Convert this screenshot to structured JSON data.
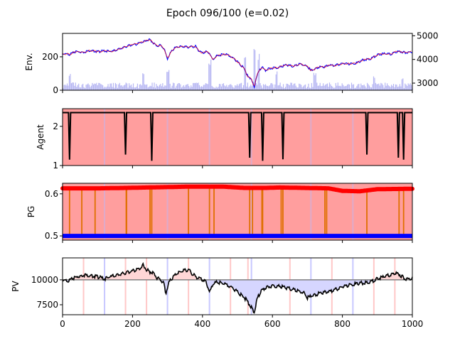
{
  "title": "Epoch 096/100 (e=0.02)",
  "colors": {
    "price_up": "#ff0000",
    "price_down": "#0000ff",
    "volume": "#6f6fe8",
    "agent_line": "#000000",
    "sell_fill": "#ff9e9e",
    "pg_high": "#ff0000",
    "pg_low": "#0000ff",
    "pg_switch": "#e07000",
    "pv_line": "#000000",
    "pv_base": "#808080",
    "pv_above": "#ffd6d6",
    "pv_below": "#d6d6ff",
    "marker_red": "#ffb0b0",
    "marker_blue": "#b0b0ff"
  },
  "chart_data": [
    {
      "type": "line",
      "ylabel": "Env.",
      "ylabel_right": "",
      "xlim": [
        0,
        1000
      ],
      "ylim": [
        0,
        340
      ],
      "yticks": [
        0,
        200
      ],
      "ylim_right": [
        2700,
        5100
      ],
      "yticks_right": [
        3000,
        4000,
        5000
      ],
      "price_points": [
        [
          0,
          218
        ],
        [
          20,
          215
        ],
        [
          40,
          232
        ],
        [
          60,
          228
        ],
        [
          80,
          238
        ],
        [
          100,
          230
        ],
        [
          120,
          236
        ],
        [
          140,
          232
        ],
        [
          150,
          238
        ],
        [
          170,
          252
        ],
        [
          190,
          268
        ],
        [
          210,
          275
        ],
        [
          230,
          290
        ],
        [
          240,
          298
        ],
        [
          250,
          302
        ],
        [
          260,
          282
        ],
        [
          270,
          265
        ],
        [
          280,
          270
        ],
        [
          290,
          248
        ],
        [
          300,
          188
        ],
        [
          310,
          228
        ],
        [
          320,
          252
        ],
        [
          340,
          262
        ],
        [
          360,
          258
        ],
        [
          380,
          262
        ],
        [
          390,
          235
        ],
        [
          400,
          222
        ],
        [
          410,
          230
        ],
        [
          420,
          222
        ],
        [
          430,
          180
        ],
        [
          440,
          205
        ],
        [
          450,
          210
        ],
        [
          460,
          215
        ],
        [
          470,
          212
        ],
        [
          480,
          202
        ],
        [
          490,
          188
        ],
        [
          500,
          170
        ],
        [
          510,
          150
        ],
        [
          520,
          128
        ],
        [
          530,
          80
        ],
        [
          540,
          70
        ],
        [
          548,
          12
        ],
        [
          555,
          90
        ],
        [
          570,
          140
        ],
        [
          580,
          118
        ],
        [
          590,
          128
        ],
        [
          600,
          132
        ],
        [
          620,
          138
        ],
        [
          640,
          152
        ],
        [
          660,
          142
        ],
        [
          680,
          158
        ],
        [
          700,
          142
        ],
        [
          710,
          118
        ],
        [
          720,
          125
        ],
        [
          730,
          138
        ],
        [
          750,
          140
        ],
        [
          760,
          150
        ],
        [
          780,
          148
        ],
        [
          800,
          160
        ],
        [
          820,
          158
        ],
        [
          840,
          162
        ],
        [
          860,
          182
        ],
        [
          880,
          188
        ],
        [
          900,
          212
        ],
        [
          920,
          218
        ],
        [
          940,
          215
        ],
        [
          950,
          228
        ],
        [
          960,
          232
        ],
        [
          970,
          230
        ],
        [
          980,
          225
        ],
        [
          1000,
          230
        ]
      ],
      "volume_peaks": [
        [
          520,
          150
        ],
        [
          548,
          180
        ],
        [
          560,
          160
        ],
        [
          420,
          120
        ],
        [
          300,
          90
        ],
        [
          230,
          80
        ],
        [
          20,
          70
        ],
        [
          610,
          80
        ],
        [
          720,
          70
        ],
        [
          890,
          60
        ],
        [
          970,
          50
        ]
      ]
    },
    {
      "type": "line",
      "ylabel": "Agent",
      "xlim": [
        0,
        1000
      ],
      "ylim": [
        1,
        2.45
      ],
      "yticks": [
        1,
        2
      ],
      "base_level": 2.35,
      "dips": [
        [
          20,
          1.15
        ],
        [
          180,
          1.28
        ],
        [
          255,
          1.12
        ],
        [
          535,
          1.2
        ],
        [
          572,
          1.12
        ],
        [
          630,
          1.16
        ],
        [
          870,
          1.28
        ],
        [
          960,
          1.2
        ],
        [
          975,
          1.15
        ]
      ]
    },
    {
      "type": "line",
      "ylabel": "PG",
      "xlim": [
        0,
        1000
      ],
      "ylim": [
        0.49,
        0.625
      ],
      "yticks": [
        0.5,
        0.6
      ],
      "high_series": [
        [
          0,
          0.613
        ],
        [
          100,
          0.613
        ],
        [
          180,
          0.614
        ],
        [
          240,
          0.615
        ],
        [
          360,
          0.617
        ],
        [
          460,
          0.617
        ],
        [
          520,
          0.614
        ],
        [
          580,
          0.614
        ],
        [
          620,
          0.615
        ],
        [
          760,
          0.613
        ],
        [
          800,
          0.607
        ],
        [
          850,
          0.606
        ],
        [
          900,
          0.611
        ],
        [
          1000,
          0.612
        ]
      ],
      "low_series": [
        [
          0,
          0.5
        ],
        [
          1000,
          0.5
        ]
      ],
      "switch_points": [
        20,
        55,
        93,
        182,
        183,
        250,
        255,
        360,
        420,
        433,
        535,
        543,
        570,
        572,
        625,
        630,
        750,
        755,
        870,
        962,
        975
      ]
    },
    {
      "type": "area",
      "ylabel": "PV",
      "xlim": [
        0,
        1000
      ],
      "ylim": [
        6500,
        12200
      ],
      "yticks": [
        7500,
        10000
      ],
      "xticks": [
        0,
        200,
        400,
        600,
        800,
        1000
      ],
      "baseline": 10000,
      "pv_points": [
        [
          0,
          9900
        ],
        [
          20,
          9950
        ],
        [
          40,
          10300
        ],
        [
          60,
          10500
        ],
        [
          80,
          10400
        ],
        [
          100,
          10300
        ],
        [
          120,
          10100
        ],
        [
          140,
          10350
        ],
        [
          160,
          10500
        ],
        [
          180,
          10700
        ],
        [
          200,
          10900
        ],
        [
          220,
          11100
        ],
        [
          230,
          11500
        ],
        [
          240,
          11000
        ],
        [
          250,
          10800
        ],
        [
          260,
          10700
        ],
        [
          270,
          10200
        ],
        [
          280,
          10000
        ],
        [
          290,
          9600
        ],
        [
          295,
          8600
        ],
        [
          305,
          9800
        ],
        [
          320,
          10400
        ],
        [
          340,
          10900
        ],
        [
          360,
          11000
        ],
        [
          380,
          10300
        ],
        [
          400,
          10000
        ],
        [
          410,
          9800
        ],
        [
          420,
          8800
        ],
        [
          430,
          9500
        ],
        [
          440,
          9800
        ],
        [
          460,
          9600
        ],
        [
          480,
          9300
        ],
        [
          500,
          8800
        ],
        [
          520,
          8200
        ],
        [
          530,
          7800
        ],
        [
          540,
          7200
        ],
        [
          548,
          6700
        ],
        [
          555,
          8000
        ],
        [
          570,
          9000
        ],
        [
          590,
          9300
        ],
        [
          610,
          9400
        ],
        [
          630,
          9300
        ],
        [
          650,
          9100
        ],
        [
          670,
          8900
        ],
        [
          690,
          8700
        ],
        [
          700,
          8200
        ],
        [
          720,
          8500
        ],
        [
          740,
          8700
        ],
        [
          760,
          8800
        ],
        [
          780,
          9000
        ],
        [
          800,
          9300
        ],
        [
          820,
          9500
        ],
        [
          840,
          9600
        ],
        [
          860,
          9700
        ],
        [
          880,
          9800
        ],
        [
          900,
          10100
        ],
        [
          920,
          10300
        ],
        [
          940,
          10500
        ],
        [
          950,
          10700
        ],
        [
          960,
          10600
        ],
        [
          980,
          10100
        ],
        [
          1000,
          10150
        ]
      ],
      "markers_red": [
        60,
        180,
        240,
        360,
        480,
        530,
        650,
        770,
        890,
        950
      ],
      "markers_blue": [
        120,
        300,
        420,
        540,
        710,
        830
      ]
    }
  ],
  "tick_labels": {
    "env_y": [
      "0",
      "200"
    ],
    "env_y_right": [
      "3000",
      "4000",
      "5000"
    ],
    "agent_y": [
      "1",
      "2"
    ],
    "pg_y": [
      "0.5",
      "0.6"
    ],
    "pv_y": [
      "7500",
      "10000"
    ],
    "x": [
      "0",
      "200",
      "400",
      "600",
      "800",
      "1000"
    ]
  }
}
